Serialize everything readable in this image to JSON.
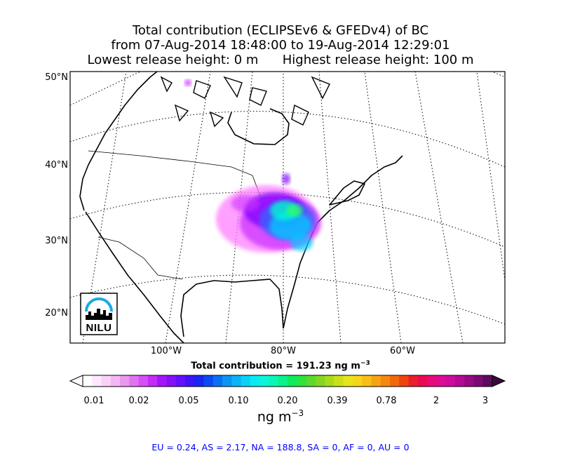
{
  "title": {
    "line1": "Total contribution (ECLIPSEv6 & GFEDv4) of BC",
    "line2": "from 07-Aug-2014 18:48:00 to 19-Aug-2014 12:29:01",
    "line3_left": "Lowest release height: 0 m",
    "line3_right": "Highest release height: 100 m"
  },
  "map": {
    "lat_labels": [
      "50°N",
      "40°N",
      "30°N",
      "20°N"
    ],
    "lon_labels": [
      "100°W",
      "80°W",
      "60°W"
    ],
    "plume_colors": [
      "#ff80ff",
      "#cc33ff",
      "#8000ff",
      "#3366ff",
      "#00ccff",
      "#00ffcc",
      "#33ff66"
    ],
    "logo_text": "NILU",
    "logo_icon": "nilu-city-skyline-logo"
  },
  "colorbar": {
    "title": "Total contribution = 191.23 ng m",
    "title_exponent": "−3",
    "tick_labels": [
      "0.01",
      "0.02",
      "0.05",
      "0.10",
      "0.20",
      "0.39",
      "0.78",
      "2",
      "3"
    ],
    "colors": [
      "#ffffff",
      "#fde8fd",
      "#f9d2f9",
      "#f3b8f3",
      "#eb98f0",
      "#e173f3",
      "#d64ff6",
      "#c52cf8",
      "#a614f9",
      "#8510fa",
      "#6410fb",
      "#3f14f7",
      "#1628f2",
      "#0a4cf2",
      "#0a70f3",
      "#0b94f4",
      "#0ab4f6",
      "#0ad2f6",
      "#0aeaf2",
      "#0af5dc",
      "#0af6b4",
      "#0af28a",
      "#0cec5c",
      "#2ee33c",
      "#5ad92e",
      "#84d622",
      "#aadb18",
      "#cce01a",
      "#e8e41e",
      "#f5d61a",
      "#f8bf16",
      "#f8a412",
      "#f6880f",
      "#f4680c",
      "#ef440c",
      "#ea1e2c",
      "#ea0a52",
      "#e70a78",
      "#df0a94",
      "#cf0a9e",
      "#b50a92",
      "#960a82",
      "#7a0a74",
      "#5e0a5e"
    ],
    "units": "ng m",
    "units_exponent": "−3"
  },
  "regions_text": "EU = 0.24,  AS = 2.17,  NA = 188.8,  SA = 0,  AF = 0,  AU = 0"
}
